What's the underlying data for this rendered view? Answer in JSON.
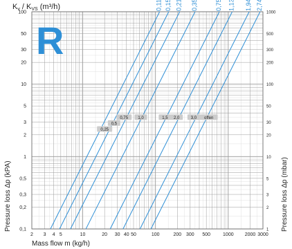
{
  "header": {
    "kv_label": "K",
    "kv_sub": "v",
    "sep": " / K",
    "kvs_sub": "VS",
    "unit": " (m³/h)"
  },
  "badge": {
    "letter": "R",
    "color": "#2e8fd6"
  },
  "colors": {
    "line": "#2e8fd6",
    "grid_major": "#9a9a9a",
    "grid_minor": "#cfcfcf",
    "tag_fill": "#cccccc"
  },
  "chart_data": {
    "type": "line",
    "xlabel": "Mass flow m (kg/h)",
    "ylabel_left": "Pressure loss Δp (kPA)",
    "ylabel_right": "Pressure loss Δp (mbar)",
    "x_scale": "log",
    "y_scale": "log",
    "xlim": [
      2,
      3000
    ],
    "ylim": [
      0.1,
      100
    ],
    "grid": true,
    "x_ticks": [
      {
        "v": 2,
        "label": "2"
      },
      {
        "v": 3,
        "label": "3"
      },
      {
        "v": 4,
        "label": "4"
      },
      {
        "v": 5,
        "label": "5"
      },
      {
        "v": 10,
        "label": "10"
      },
      {
        "v": 20,
        "label": "20"
      },
      {
        "v": 30,
        "label": "30"
      },
      {
        "v": 40,
        "label": "40"
      },
      {
        "v": 50,
        "label": "50"
      },
      {
        "v": 100,
        "label": "100"
      },
      {
        "v": 200,
        "label": "200"
      },
      {
        "v": 300,
        "label": "300"
      },
      {
        "v": 500,
        "label": "500"
      },
      {
        "v": 1000,
        "label": "1000"
      },
      {
        "v": 2000,
        "label": "2000"
      },
      {
        "v": 3000,
        "label": "3000"
      }
    ],
    "y_ticks_left": [
      {
        "v": 0.1,
        "label": "0,1"
      },
      {
        "v": 0.2,
        "label": "0,2"
      },
      {
        "v": 0.3,
        "label": "0,3"
      },
      {
        "v": 0.5,
        "label": "0,5"
      },
      {
        "v": 1,
        "label": "1"
      },
      {
        "v": 2,
        "label": "2"
      },
      {
        "v": 3,
        "label": "3"
      },
      {
        "v": 5,
        "label": "5"
      },
      {
        "v": 10,
        "label": "10"
      },
      {
        "v": 20,
        "label": "20"
      },
      {
        "v": 30,
        "label": "30"
      },
      {
        "v": 50,
        "label": "50"
      },
      {
        "v": 100,
        "label": "100"
      }
    ],
    "y_ticks_right": [
      {
        "v": 0.1,
        "label": "1"
      },
      {
        "v": 0.2,
        "label": "2"
      },
      {
        "v": 0.3,
        "label": "3"
      },
      {
        "v": 0.5,
        "label": "5"
      },
      {
        "v": 1,
        "label": "10"
      },
      {
        "v": 2,
        "label": "20"
      },
      {
        "v": 3,
        "label": "30"
      },
      {
        "v": 5,
        "label": "50"
      },
      {
        "v": 10,
        "label": "100"
      },
      {
        "v": 20,
        "label": "200"
      },
      {
        "v": 30,
        "label": "300"
      },
      {
        "v": 50,
        "label": "500"
      },
      {
        "v": 100,
        "label": "1000"
      }
    ],
    "series": [
      {
        "name": "0,114",
        "kv": 0.114
      },
      {
        "name": "0,152",
        "kv": 0.152
      },
      {
        "name": "0,215",
        "kv": 0.215
      },
      {
        "name": "0,350",
        "kv": 0.35
      },
      {
        "name": "0,755",
        "kv": 0.755
      },
      {
        "name": "1,134",
        "kv": 1.134
      },
      {
        "name": "1,940",
        "kv": 1.94
      },
      {
        "name": "2,740",
        "kv": 2.74
      }
    ],
    "presetting_tags": [
      {
        "label": "0,25",
        "x": 20,
        "y": 2.4
      },
      {
        "label": "0,5",
        "x": 27,
        "y": 2.9
      },
      {
        "label": "0,75",
        "x": 37,
        "y": 3.5
      },
      {
        "label": "1,0",
        "x": 63,
        "y": 3.5
      },
      {
        "label": "1,5",
        "x": 135,
        "y": 3.5
      },
      {
        "label": "2,0",
        "x": 195,
        "y": 3.5
      },
      {
        "label": "3,0",
        "x": 335,
        "y": 3.5
      },
      {
        "label": "offen",
        "x": 540,
        "y": 3.5
      }
    ]
  }
}
